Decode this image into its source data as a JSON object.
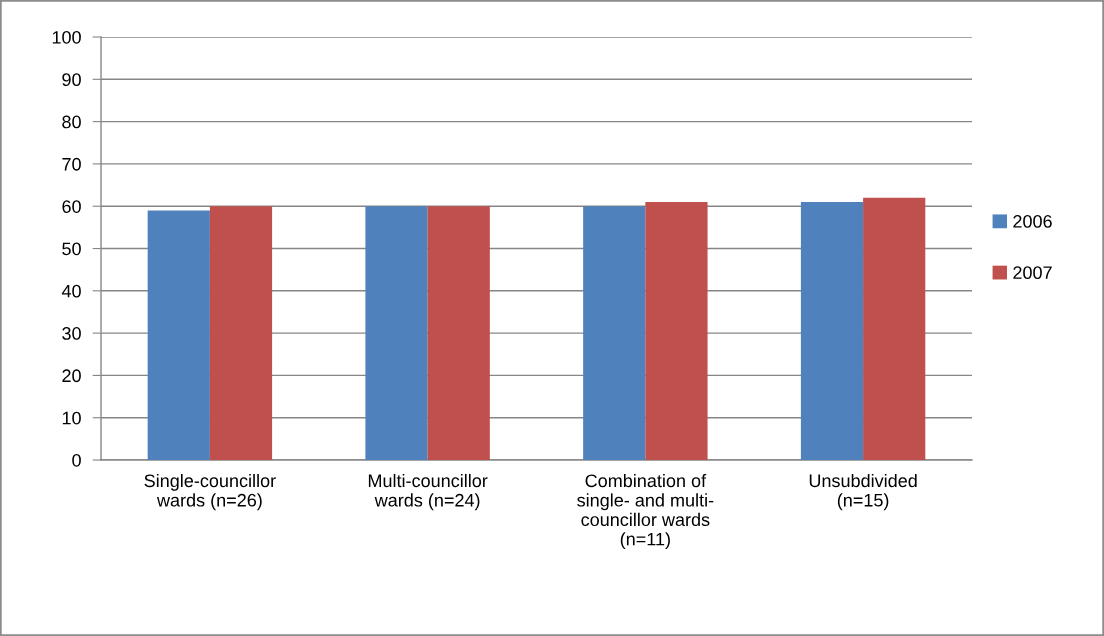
{
  "chart_data": {
    "type": "bar",
    "categories": [
      "Single-councillor\nwards (n=26)",
      "Multi-councillor\nwards (n=24)",
      "Combination of\nsingle- and multi-\ncouncillor wards\n(n=11)",
      "Unsubdivided\n(n=15)"
    ],
    "series": [
      {
        "name": "2006",
        "color": "#4f81bd",
        "values": [
          59,
          60,
          60,
          61
        ]
      },
      {
        "name": "2007",
        "color": "#c0504d",
        "values": [
          60,
          60,
          61,
          62
        ]
      }
    ],
    "ylim": [
      0,
      100
    ],
    "yticks": [
      0,
      10,
      20,
      30,
      40,
      50,
      60,
      70,
      80,
      90,
      100
    ],
    "grid": "y",
    "legend": "right"
  }
}
